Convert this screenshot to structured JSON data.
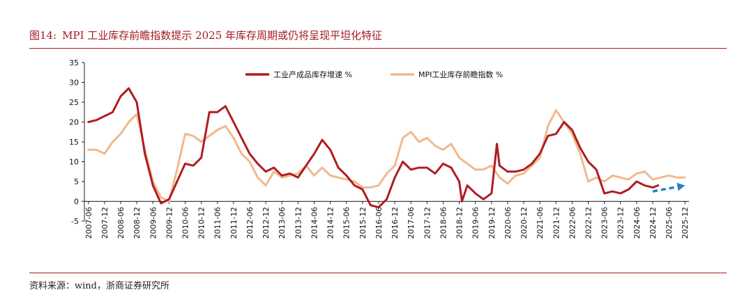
{
  "figure": {
    "number_label": "图14:",
    "title_text": "MPI 工业库存前瞻指数提示 2025 年库存周期或仍将呈现平坦化特征",
    "source_text": "资料来源：wind，浙商证券研究所"
  },
  "colors": {
    "title_red": "#a31b1f",
    "series_inventory": "#b01c22",
    "series_mpi": "#f0b98c",
    "arrow": "#2f7fc1"
  },
  "chart_data": {
    "type": "line",
    "ylim": [
      -5,
      35
    ],
    "y_ticks": [
      -5,
      0,
      5,
      10,
      15,
      20,
      25,
      30,
      35
    ],
    "x_range": [
      "2007-06",
      "2025-12"
    ],
    "x_tick_labels": [
      "2007-06",
      "2007-12",
      "2008-06",
      "2008-12",
      "2009-06",
      "2009-12",
      "2010-06",
      "2010-12",
      "2011-06",
      "2011-12",
      "2012-06",
      "2012-12",
      "2013-06",
      "2013-12",
      "2014-06",
      "2014-12",
      "2015-06",
      "2015-12",
      "2016-06",
      "2016-12",
      "2017-06",
      "2017-12",
      "2018-06",
      "2018-12",
      "2019-06",
      "2019-12",
      "2020-06",
      "2020-12",
      "2021-06",
      "2021-12",
      "2022-06",
      "2022-12",
      "2023-06",
      "2023-12",
      "2024-06",
      "2024-12",
      "2025-06",
      "2025-12"
    ],
    "legend_position": "top",
    "series": [
      {
        "name": "工业产成品库存增速 %",
        "color": "#b01c22",
        "points": [
          [
            "2007-06",
            20
          ],
          [
            "2007-09",
            20.5
          ],
          [
            "2007-12",
            21.5
          ],
          [
            "2008-03",
            22.5
          ],
          [
            "2008-06",
            26.5
          ],
          [
            "2008-09",
            28.5
          ],
          [
            "2008-12",
            25
          ],
          [
            "2009-03",
            12
          ],
          [
            "2009-06",
            4
          ],
          [
            "2009-09",
            -0.5
          ],
          [
            "2009-12",
            0.5
          ],
          [
            "2010-03",
            5
          ],
          [
            "2010-06",
            9.5
          ],
          [
            "2010-09",
            9
          ],
          [
            "2010-12",
            11
          ],
          [
            "2011-03",
            22.5
          ],
          [
            "2011-06",
            22.5
          ],
          [
            "2011-09",
            24
          ],
          [
            "2011-12",
            20
          ],
          [
            "2012-03",
            16
          ],
          [
            "2012-06",
            12
          ],
          [
            "2012-09",
            9.5
          ],
          [
            "2012-12",
            7.5
          ],
          [
            "2013-03",
            8.5
          ],
          [
            "2013-06",
            6.5
          ],
          [
            "2013-09",
            7
          ],
          [
            "2013-12",
            6
          ],
          [
            "2014-03",
            9
          ],
          [
            "2014-06",
            12
          ],
          [
            "2014-09",
            15.5
          ],
          [
            "2014-12",
            13
          ],
          [
            "2015-03",
            8.5
          ],
          [
            "2015-06",
            6.5
          ],
          [
            "2015-09",
            4
          ],
          [
            "2015-12",
            3
          ],
          [
            "2016-03",
            -1
          ],
          [
            "2016-06",
            -1.5
          ],
          [
            "2016-09",
            0.5
          ],
          [
            "2016-12",
            6
          ],
          [
            "2017-03",
            10
          ],
          [
            "2017-06",
            8
          ],
          [
            "2017-09",
            8.5
          ],
          [
            "2017-12",
            8.5
          ],
          [
            "2018-03",
            7
          ],
          [
            "2018-06",
            9.5
          ],
          [
            "2018-09",
            8.5
          ],
          [
            "2018-12",
            5
          ],
          [
            "2019-01",
            0
          ],
          [
            "2019-03",
            4
          ],
          [
            "2019-06",
            2
          ],
          [
            "2019-09",
            0.5
          ],
          [
            "2019-12",
            2
          ],
          [
            "2020-02",
            14.5
          ],
          [
            "2020-03",
            9
          ],
          [
            "2020-06",
            7.5
          ],
          [
            "2020-09",
            7.5
          ],
          [
            "2020-12",
            8
          ],
          [
            "2021-03",
            9.5
          ],
          [
            "2021-06",
            12
          ],
          [
            "2021-09",
            16.5
          ],
          [
            "2021-12",
            17
          ],
          [
            "2022-03",
            20
          ],
          [
            "2022-06",
            18
          ],
          [
            "2022-09",
            13.5
          ],
          [
            "2022-12",
            10
          ],
          [
            "2023-03",
            8
          ],
          [
            "2023-06",
            2
          ],
          [
            "2023-09",
            2.5
          ],
          [
            "2023-12",
            2
          ],
          [
            "2024-03",
            3
          ],
          [
            "2024-06",
            5
          ],
          [
            "2024-09",
            4
          ],
          [
            "2024-12",
            3.5
          ],
          [
            "2025-02",
            4
          ]
        ]
      },
      {
        "name": "MPI工业库存前瞻指数 %",
        "color": "#f0b98c",
        "points": [
          [
            "2007-06",
            13
          ],
          [
            "2007-09",
            13
          ],
          [
            "2007-12",
            12
          ],
          [
            "2008-03",
            15
          ],
          [
            "2008-06",
            17
          ],
          [
            "2008-09",
            20
          ],
          [
            "2008-12",
            22
          ],
          [
            "2009-03",
            13
          ],
          [
            "2009-06",
            5
          ],
          [
            "2009-09",
            1
          ],
          [
            "2009-12",
            0
          ],
          [
            "2010-03",
            8
          ],
          [
            "2010-06",
            17
          ],
          [
            "2010-09",
            16.5
          ],
          [
            "2010-12",
            15
          ],
          [
            "2011-03",
            16.5
          ],
          [
            "2011-06",
            18
          ],
          [
            "2011-09",
            19
          ],
          [
            "2011-12",
            16
          ],
          [
            "2012-03",
            12
          ],
          [
            "2012-06",
            10
          ],
          [
            "2012-09",
            6
          ],
          [
            "2012-12",
            4
          ],
          [
            "2013-03",
            7.5
          ],
          [
            "2013-06",
            6
          ],
          [
            "2013-09",
            6.5
          ],
          [
            "2013-12",
            7
          ],
          [
            "2014-03",
            9
          ],
          [
            "2014-06",
            6.5
          ],
          [
            "2014-09",
            8.5
          ],
          [
            "2014-12",
            6.5
          ],
          [
            "2015-03",
            6
          ],
          [
            "2015-06",
            5.5
          ],
          [
            "2015-09",
            5
          ],
          [
            "2015-12",
            3.5
          ],
          [
            "2016-03",
            3.5
          ],
          [
            "2016-06",
            4
          ],
          [
            "2016-09",
            7
          ],
          [
            "2016-12",
            9
          ],
          [
            "2017-03",
            16
          ],
          [
            "2017-06",
            17.5
          ],
          [
            "2017-09",
            15
          ],
          [
            "2017-12",
            16
          ],
          [
            "2018-03",
            14
          ],
          [
            "2018-06",
            13
          ],
          [
            "2018-09",
            14.5
          ],
          [
            "2018-12",
            11
          ],
          [
            "2019-03",
            9.5
          ],
          [
            "2019-06",
            8
          ],
          [
            "2019-09",
            8
          ],
          [
            "2019-12",
            9
          ],
          [
            "2020-03",
            6
          ],
          [
            "2020-06",
            4.5
          ],
          [
            "2020-09",
            6.5
          ],
          [
            "2020-12",
            7
          ],
          [
            "2021-03",
            9
          ],
          [
            "2021-06",
            11
          ],
          [
            "2021-09",
            19
          ],
          [
            "2021-12",
            23
          ],
          [
            "2022-03",
            20
          ],
          [
            "2022-06",
            17
          ],
          [
            "2022-09",
            12
          ],
          [
            "2022-12",
            5
          ],
          [
            "2023-03",
            6
          ],
          [
            "2023-06",
            5
          ],
          [
            "2023-09",
            6.5
          ],
          [
            "2023-12",
            6
          ],
          [
            "2024-03",
            5.5
          ],
          [
            "2024-06",
            7
          ],
          [
            "2024-09",
            7.5
          ],
          [
            "2024-12",
            5.5
          ],
          [
            "2025-03",
            6
          ],
          [
            "2025-06",
            6.5
          ],
          [
            "2025-09",
            6
          ],
          [
            "2025-12",
            6
          ]
        ]
      }
    ],
    "annotations": [
      {
        "type": "arrow",
        "from": [
          "2024-12",
          2.5
        ],
        "to": [
          "2025-12",
          4
        ],
        "style": "dashed",
        "color": "#2f7fc1"
      }
    ]
  }
}
